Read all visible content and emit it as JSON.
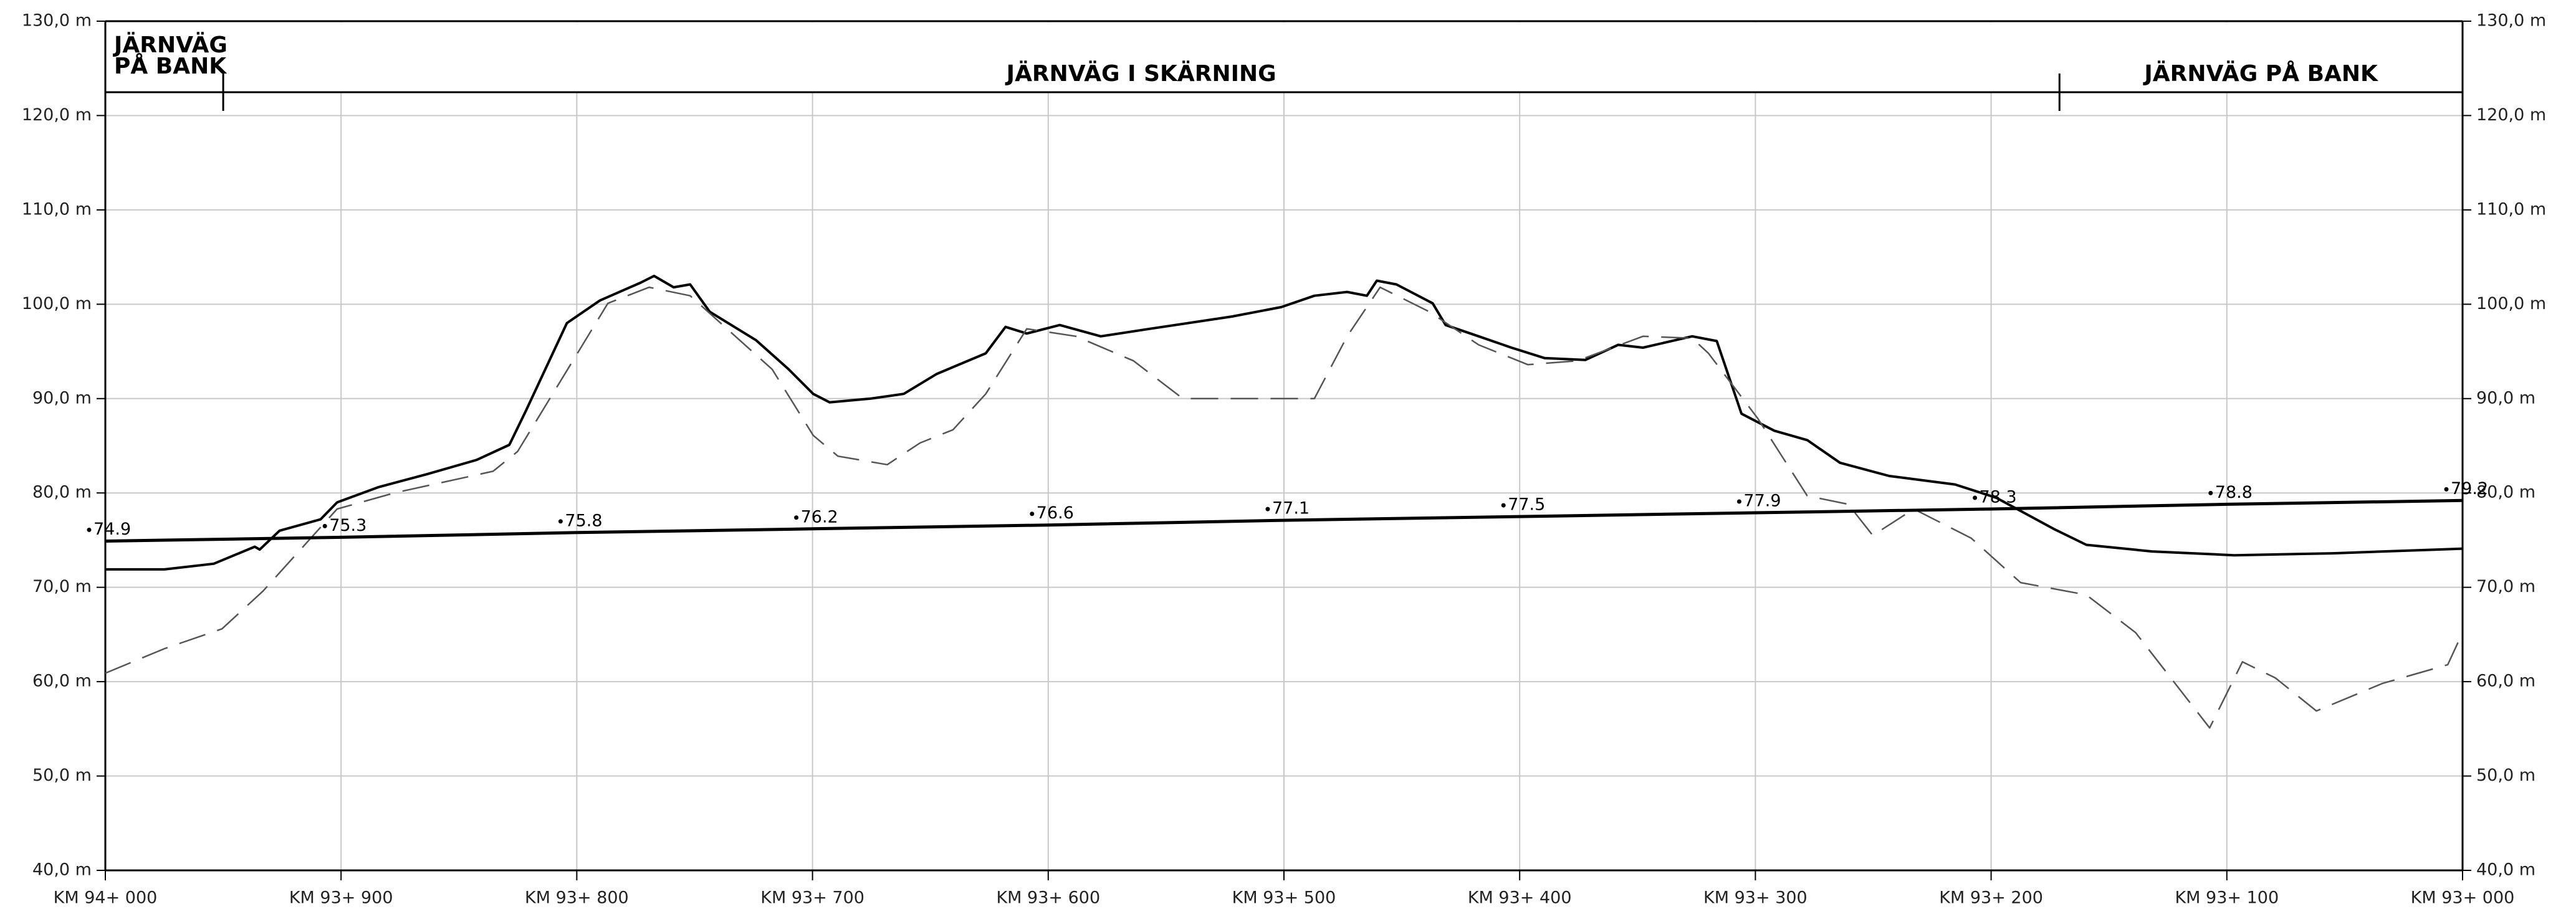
{
  "chart_data": {
    "type": "line",
    "xlim": [
      0,
      1000
    ],
    "xticks": [
      {
        "value": 0,
        "label": "KM 94+ 000"
      },
      {
        "value": 100,
        "label": "KM 93+ 900"
      },
      {
        "value": 200,
        "label": "KM 93+ 800"
      },
      {
        "value": 300,
        "label": "KM 93+ 700"
      },
      {
        "value": 400,
        "label": "KM 93+ 600"
      },
      {
        "value": 500,
        "label": "KM 93+ 500"
      },
      {
        "value": 600,
        "label": "KM 93+ 400"
      },
      {
        "value": 700,
        "label": "KM 93+ 300"
      },
      {
        "value": 800,
        "label": "KM 93+ 200"
      },
      {
        "value": 900,
        "label": "KM 93+ 100"
      },
      {
        "value": 1000,
        "label": "KM 93+ 000"
      }
    ],
    "ylim": [
      40,
      130
    ],
    "yticks": [
      {
        "value": 40,
        "label": "40,0 m"
      },
      {
        "value": 50,
        "label": "50,0 m"
      },
      {
        "value": 60,
        "label": "60,0 m"
      },
      {
        "value": 70,
        "label": "70,0 m"
      },
      {
        "value": 80,
        "label": "80,0 m"
      },
      {
        "value": 90,
        "label": "90,0 m"
      },
      {
        "value": 100,
        "label": "100,0 m"
      },
      {
        "value": 110,
        "label": "110,0 m"
      },
      {
        "value": 120,
        "label": "120,0 m"
      },
      {
        "value": 130,
        "label": "130,0 m"
      }
    ],
    "grid": true,
    "sections": [
      {
        "lines": [
          "JÄRNVÄG",
          "PÅ BANK"
        ],
        "from": 0,
        "to": 50
      },
      {
        "lines": [
          "JÄRNVÄG I SKÄRNING"
        ],
        "from": 50,
        "to": 829
      },
      {
        "lines": [
          "JÄRNVÄG PÅ BANK"
        ],
        "from": 829,
        "to": 1000
      }
    ],
    "series": [
      {
        "style": "solid",
        "color": "#000000",
        "x": [
          0,
          25.1,
          46.0,
          63.4,
          65.5,
          73.9,
          91.3,
          98.3,
          115.7,
          136.6,
          157.5,
          171.4,
          178.4,
          195.8,
          209.8,
          227.2,
          232.8,
          241.1,
          248.1,
          256.4,
          276.0,
          289.9,
          300.3,
          307.3,
          324.7,
          338.7,
          352.6,
          373.5,
          381.9,
          390.9,
          404.9,
          422.3,
          443.2,
          478.0,
          498.9,
          512.9,
          526.8,
          535.2,
          539.4,
          547.7,
          563.1,
          568.6,
          582.6,
          596.5,
          610.5,
          627.9,
          641.8,
          652.3,
          673.2,
          683.6,
          694.1,
          708.0,
          722.0,
          735.9,
          756.8,
          784.7,
          802.1,
          826.5,
          840.4,
          868.3,
          903.1,
          944.9,
          1000
        ],
        "values": [
          71.9,
          71.9,
          72.5,
          74.3,
          74.0,
          76.0,
          77.2,
          79.0,
          80.6,
          82.0,
          83.5,
          85.1,
          88.7,
          98.0,
          100.4,
          102.3,
          103.0,
          101.8,
          102.1,
          99.2,
          96.2,
          93.1,
          90.5,
          89.6,
          90.0,
          90.5,
          92.6,
          94.8,
          97.6,
          96.9,
          97.8,
          96.6,
          97.4,
          98.7,
          99.7,
          100.9,
          101.3,
          100.9,
          102.5,
          102.1,
          100.1,
          97.8,
          96.6,
          95.4,
          94.3,
          94.1,
          95.7,
          95.4,
          96.6,
          96.1,
          88.4,
          86.6,
          85.6,
          83.2,
          81.8,
          80.9,
          79.5,
          76.2,
          74.5,
          73.8,
          73.4,
          73.6,
          74.1
        ]
      },
      {
        "style": "dashed",
        "color": "#555555",
        "x": [
          0,
          25.1,
          49.5,
          66.9,
          98.3,
          122.6,
          164.5,
          174.9,
          213.2,
          230.7,
          248.1,
          282.9,
          300.3,
          310.8,
          331.7,
          345.6,
          359.6,
          373.5,
          390.9,
          411.8,
          436.2,
          457.1,
          512.9,
          526.8,
          540.8,
          561.7,
          582.6,
          603.5,
          624.4,
          652.3,
          673.2,
          680.1,
          701.0,
          722.0,
          739.4,
          749.8,
          767.2,
          791.6,
          812.5,
          840.4,
          861.3,
          892.7,
          906.6,
          920.6,
          938.0,
          965.9,
          993.7,
          1000
        ],
        "values": [
          60.9,
          63.5,
          65.6,
          69.6,
          78.3,
          80.0,
          82.3,
          84.4,
          100.1,
          101.8,
          100.9,
          93.1,
          86.1,
          83.9,
          83.0,
          85.3,
          86.7,
          90.5,
          97.4,
          96.6,
          94.0,
          90.0,
          90.0,
          96.6,
          101.8,
          99.2,
          95.7,
          93.6,
          94.0,
          96.6,
          96.4,
          94.8,
          87.9,
          79.7,
          78.8,
          75.5,
          78.3,
          75.2,
          70.5,
          69.2,
          65.2,
          55.1,
          62.1,
          60.4,
          56.9,
          59.8,
          61.8,
          65.2
        ]
      },
      {
        "style": "grade",
        "color": "#000000",
        "x": [
          0,
          100,
          200,
          300,
          400,
          500,
          600,
          700,
          800,
          900,
          1000
        ],
        "values": [
          74.9,
          75.3,
          75.8,
          76.2,
          76.6,
          77.1,
          77.5,
          77.9,
          78.3,
          78.8,
          79.2
        ]
      }
    ]
  }
}
